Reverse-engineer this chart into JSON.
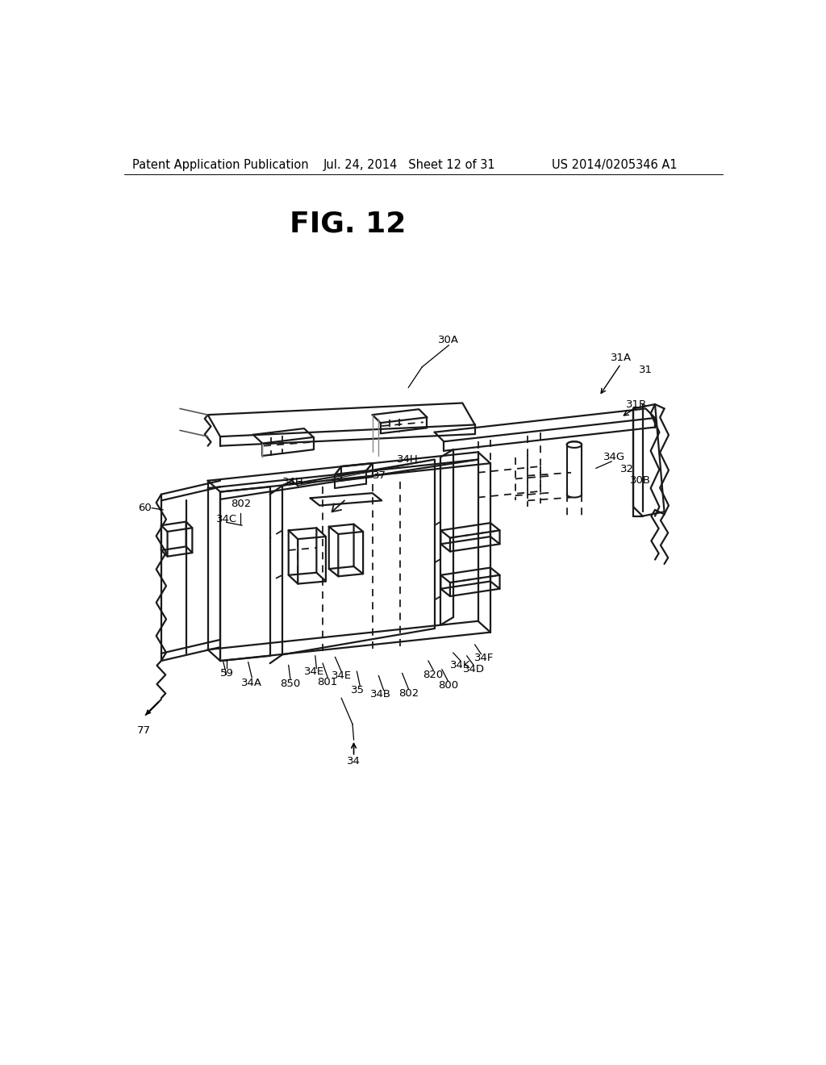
{
  "bg_color": "#ffffff",
  "header_left": "Patent Application Publication",
  "header_mid": "Jul. 24, 2014   Sheet 12 of 31",
  "header_right": "US 2014/0205346 A1",
  "fig_label": "FIG. 12",
  "header_fontsize": 10.5,
  "fig_label_fontsize": 26,
  "line_color": "#1a1a1a",
  "line_width": 1.6
}
